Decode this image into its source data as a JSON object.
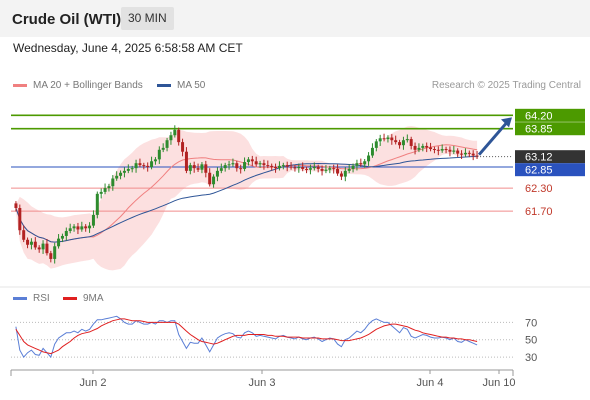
{
  "header": {
    "title": "Crude Oil (WTI)",
    "timeframe": "30 MIN"
  },
  "datetime": "Wednesday, June 4, 2025 6:58:58 AM CET",
  "legend": {
    "ma20_label": "MA 20 + Bollinger Bands",
    "ma50_label": "MA 50",
    "ma20_color": "#f08080",
    "ma50_color": "#2e5597",
    "credit": "Research © 2025 Trading Central"
  },
  "rsi_legend": {
    "rsi_label": "RSI",
    "ma_label": "9MA",
    "rsi_color": "#5b7fd6",
    "ma_color": "#e02020"
  },
  "colors": {
    "up": "#2e8b2e",
    "down": "#b22222",
    "resistance": "#4c9a00",
    "support": "#f08c8c",
    "pivot": "#2a52be",
    "price_tag": "#333333",
    "arrow": "#2e5597"
  },
  "chart_data": [
    {
      "type": "candlestick",
      "title": "Crude Oil (WTI)",
      "interval": "30 MIN",
      "ylim": [
        59.9,
        64.6
      ],
      "last_price": 63.12,
      "levels": [
        {
          "value": 64.2,
          "kind": "resistance",
          "label": "64.20"
        },
        {
          "value": 63.85,
          "kind": "resistance",
          "label": "63.85"
        },
        {
          "value": 63.12,
          "kind": "last",
          "label": "63.12"
        },
        {
          "value": 62.85,
          "kind": "pivot",
          "label": "62.85"
        },
        {
          "value": 62.3,
          "kind": "support",
          "label": "62.30"
        },
        {
          "value": 61.7,
          "kind": "support",
          "label": "61.70"
        }
      ],
      "x_ticks": [
        "Jun 2",
        "Jun 3",
        "Jun 4",
        "Jun 10"
      ],
      "projection": {
        "from": 63.12,
        "to": 64.2
      },
      "close": [
        61.78,
        61.2,
        60.95,
        60.82,
        60.9,
        60.75,
        60.7,
        60.85,
        60.6,
        60.45,
        60.78,
        60.98,
        61.05,
        61.18,
        61.25,
        61.3,
        61.22,
        61.3,
        61.25,
        61.32,
        61.6,
        62.15,
        62.2,
        62.3,
        62.35,
        62.55,
        62.62,
        62.7,
        62.75,
        62.8,
        62.82,
        62.95,
        62.9,
        62.88,
        62.85,
        63.0,
        63.05,
        63.3,
        63.35,
        63.55,
        63.68,
        63.82,
        63.5,
        63.25,
        62.75,
        62.9,
        62.82,
        62.78,
        62.92,
        62.7,
        62.4,
        62.6,
        62.75,
        62.82,
        62.9,
        62.92,
        62.95,
        62.82,
        62.8,
        62.98,
        63.05,
        63.0,
        62.92,
        62.95,
        62.9,
        62.88,
        62.85,
        62.82,
        62.88,
        62.9,
        62.86,
        62.84,
        62.82,
        62.85,
        62.8,
        62.78,
        62.82,
        62.85,
        62.8,
        62.75,
        62.78,
        62.82,
        62.8,
        62.68,
        62.6,
        62.75,
        62.8,
        62.88,
        62.95,
        62.92,
        63.0,
        63.15,
        63.35,
        63.52,
        63.6,
        63.58,
        63.62,
        63.55,
        63.5,
        63.42,
        63.55,
        63.58,
        63.4,
        63.3,
        63.35,
        63.4,
        63.36,
        63.32,
        63.3,
        63.28,
        63.32,
        63.3,
        63.25,
        63.28,
        63.2,
        63.18,
        63.22,
        63.2,
        63.15,
        63.12
      ]
    },
    {
      "type": "line",
      "title": "RSI",
      "ylim": [
        22,
        82
      ],
      "y_ticks": [
        70,
        50,
        30
      ],
      "series": [
        {
          "name": "RSI",
          "values": [
            65,
            38,
            30,
            35,
            38,
            33,
            32,
            40,
            35,
            30,
            45,
            52,
            55,
            58,
            58,
            60,
            58,
            62,
            60,
            62,
            68,
            73,
            73,
            74,
            75,
            76,
            77,
            74,
            70,
            68,
            68,
            72,
            70,
            68,
            68,
            70,
            68,
            72,
            72,
            70,
            72,
            72,
            56,
            48,
            40,
            47,
            46,
            46,
            52,
            44,
            36,
            44,
            52,
            55,
            57,
            58,
            57,
            53,
            52,
            58,
            60,
            58,
            54,
            55,
            54,
            53,
            52,
            51,
            54,
            55,
            53,
            52,
            51,
            53,
            51,
            50,
            52,
            53,
            51,
            48,
            50,
            52,
            51,
            45,
            42,
            50,
            52,
            56,
            60,
            58,
            62,
            68,
            72,
            74,
            72,
            70,
            70,
            66,
            62,
            58,
            64,
            62,
            54,
            52,
            54,
            56,
            55,
            53,
            52,
            52,
            53,
            52,
            50,
            52,
            48,
            47,
            50,
            48,
            46,
            44
          ]
        },
        {
          "name": "9MA",
          "values": [
            62,
            55,
            48,
            44,
            42,
            40,
            38,
            36,
            35,
            34,
            36,
            38,
            42,
            45,
            48,
            52,
            55,
            57,
            58,
            59,
            61,
            63,
            66,
            68,
            70,
            72,
            73,
            74,
            74,
            73,
            72,
            72,
            72,
            71,
            70,
            70,
            70,
            70,
            70,
            70,
            70,
            70,
            68,
            64,
            60,
            56,
            53,
            50,
            48,
            47,
            46,
            45,
            46,
            48,
            50,
            52,
            54,
            55,
            55,
            55,
            56,
            56,
            56,
            56,
            56,
            55,
            55,
            54,
            54,
            54,
            53,
            53,
            53,
            53,
            52,
            52,
            52,
            52,
            52,
            51,
            51,
            51,
            51,
            50,
            49,
            49,
            49,
            50,
            51,
            52,
            54,
            56,
            59,
            62,
            64,
            66,
            67,
            68,
            68,
            67,
            66,
            65,
            63,
            61,
            60,
            58,
            57,
            56,
            55,
            54,
            53,
            53,
            52,
            52,
            51,
            51,
            50,
            50,
            49,
            48
          ]
        }
      ]
    }
  ]
}
